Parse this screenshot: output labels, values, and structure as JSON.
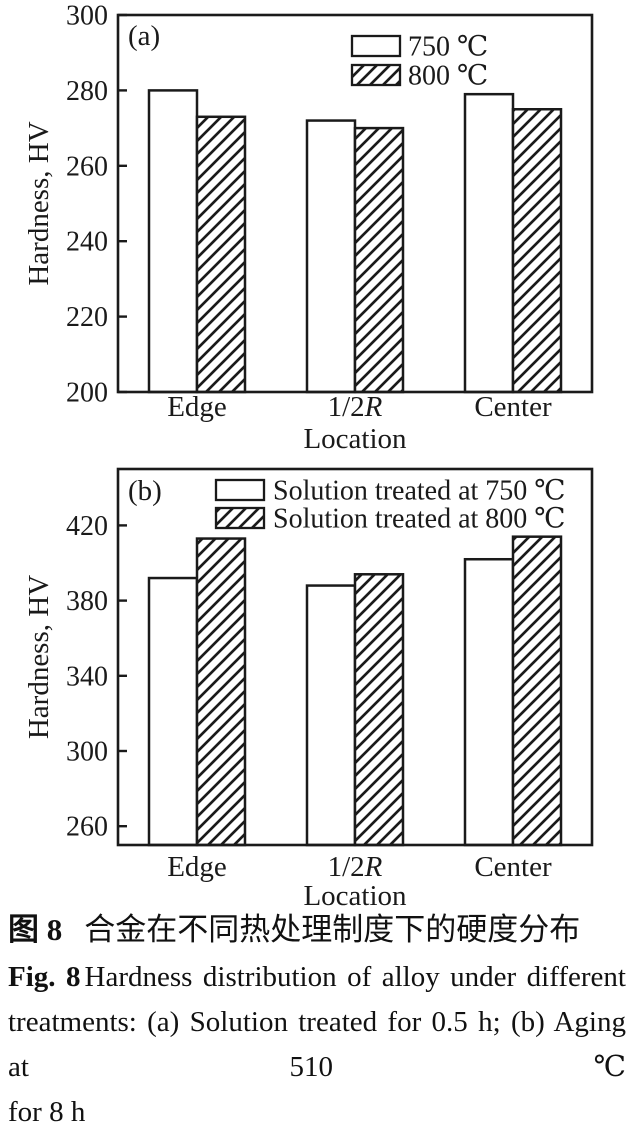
{
  "figure": {
    "background": "#ffffff",
    "ink_color": "#1a1a1a"
  },
  "chart_data": [
    {
      "type": "bar",
      "panel_label": "(a)",
      "categories": [
        "Edge",
        "1/2R",
        "Center"
      ],
      "series": [
        {
          "name": "750 ℃",
          "pattern": "solid",
          "values": [
            280,
            272,
            279
          ]
        },
        {
          "name": "800 ℃",
          "pattern": "hatch",
          "values": [
            273,
            270,
            275
          ]
        }
      ],
      "xlabel": "Location",
      "ylabel": "Hardness, HV",
      "ylim": [
        200,
        300
      ],
      "yticks": [
        200,
        220,
        240,
        260,
        280,
        300
      ],
      "legend_position": "top-right-inside",
      "grid": false,
      "bar_fill": "#ffffff",
      "line_color": "#1a1a1a"
    },
    {
      "type": "bar",
      "panel_label": "(b)",
      "categories": [
        "Edge",
        "1/2R",
        "Center"
      ],
      "series": [
        {
          "name": "Solution treated at 750 ℃",
          "pattern": "solid",
          "values": [
            392,
            388,
            402
          ]
        },
        {
          "name": "Solution treated at 800 ℃",
          "pattern": "hatch",
          "values": [
            413,
            394,
            414
          ]
        }
      ],
      "xlabel": "Location",
      "ylabel": "Hardness, HV",
      "ylim": [
        250,
        450
      ],
      "yticks": [
        260,
        300,
        340,
        380,
        420
      ],
      "legend_position": "top-center-inside",
      "grid": false,
      "bar_fill": "#ffffff",
      "line_color": "#1a1a1a"
    }
  ],
  "caption": {
    "zh": {
      "bold": "图 8",
      "text": "合金在不同热处理制度下的硬度分布"
    },
    "en_lines": [
      {
        "bold": "Fig. 8",
        "text": "Hardness distribution of alloy under different",
        "justify": true
      },
      {
        "bold": "",
        "text": "treatments: (a) Solution treated for 0.5 h; (b) Aging at 510 ℃",
        "justify": true
      },
      {
        "bold": "",
        "text": "for 8 h",
        "justify": false
      }
    ]
  }
}
